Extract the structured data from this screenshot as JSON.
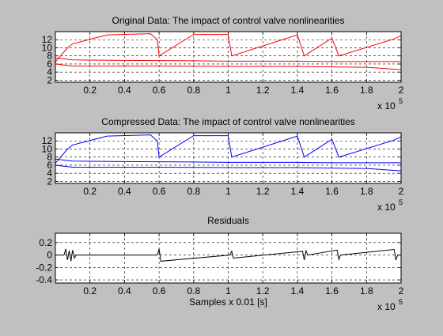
{
  "chart_data": [
    {
      "type": "line",
      "title": "Original Data: The impact of control valve nonlinearities",
      "xlabel": "",
      "ylabel": "",
      "xlim": [
        0,
        200000
      ],
      "ylim": [
        1.5,
        14
      ],
      "x_ticks": [
        0.2,
        0.4,
        0.6,
        0.8,
        1,
        1.2,
        1.4,
        1.6,
        1.8,
        2
      ],
      "x_tick_labels": [
        "0.2",
        "0.4",
        "0.6",
        "0.8",
        "1",
        "1.2",
        "1.4",
        "1.6",
        "1.8",
        "2"
      ],
      "y_ticks": [
        2,
        4,
        6,
        8,
        10,
        12
      ],
      "y_tick_labels": [
        "2",
        "4",
        "6",
        "8",
        "10",
        "12"
      ],
      "x_exponent_base": "x 10",
      "x_exponent": "5",
      "grid": true,
      "series": [
        {
          "color": "#ff0000",
          "x": [
            0,
            7000,
            10000,
            30000,
            55000,
            59000,
            60000,
            80000,
            100000,
            102000,
            140000,
            144000,
            160000,
            164000,
            196000,
            200000
          ],
          "y": [
            6.5,
            10,
            11,
            13.2,
            13.5,
            12,
            8,
            13.3,
            13.3,
            8,
            13.2,
            8,
            12.4,
            8,
            12.2,
            13
          ]
        },
        {
          "color": "#ff0000",
          "x": [
            0,
            10000,
            40000,
            80000,
            100000,
            140000,
            160000,
            200000
          ],
          "y": [
            7.5,
            7,
            6.9,
            6.8,
            6.7,
            6.7,
            6.6,
            6.6
          ]
        },
        {
          "color": "#ff0000",
          "x": [
            0,
            10000,
            60000,
            100000,
            140000,
            180000,
            200000
          ],
          "y": [
            6,
            5.5,
            5.5,
            5.4,
            5.4,
            5.2,
            4.6
          ]
        }
      ]
    },
    {
      "type": "line",
      "title": "Compressed Data: The impact of control valve nonlinearities",
      "xlabel": "",
      "ylabel": "",
      "xlim": [
        0,
        200000
      ],
      "ylim": [
        1.5,
        14
      ],
      "x_ticks": [
        0.2,
        0.4,
        0.6,
        0.8,
        1,
        1.2,
        1.4,
        1.6,
        1.8,
        2
      ],
      "x_tick_labels": [
        "0.2",
        "0.4",
        "0.6",
        "0.8",
        "1",
        "1.2",
        "1.4",
        "1.6",
        "1.8",
        "2"
      ],
      "y_ticks": [
        2,
        4,
        6,
        8,
        10,
        12
      ],
      "y_tick_labels": [
        "2",
        "4",
        "6",
        "8",
        "10",
        "12"
      ],
      "x_exponent_base": "x 10",
      "x_exponent": "5",
      "grid": true,
      "series": [
        {
          "color": "#0000ff",
          "x": [
            0,
            7000,
            10000,
            30000,
            55000,
            59000,
            60000,
            80000,
            100000,
            102000,
            140000,
            144000,
            160000,
            164000,
            196000,
            200000
          ],
          "y": [
            6.5,
            10,
            11,
            13.2,
            13.5,
            12,
            8,
            13.3,
            13.3,
            8,
            13.2,
            8,
            12.4,
            8,
            12.2,
            13
          ]
        },
        {
          "color": "#0000ff",
          "x": [
            0,
            10000,
            40000,
            80000,
            100000,
            140000,
            160000,
            200000
          ],
          "y": [
            7.5,
            7,
            6.9,
            6.8,
            6.7,
            6.7,
            6.6,
            6.6
          ]
        },
        {
          "color": "#0000ff",
          "x": [
            0,
            10000,
            60000,
            100000,
            140000,
            180000,
            200000
          ],
          "y": [
            6,
            5.5,
            5.5,
            5.4,
            5.4,
            5.2,
            4.6
          ]
        }
      ]
    },
    {
      "type": "line",
      "title": "Residuals",
      "xlabel": "Samples x 0.01 [s]",
      "ylabel": "",
      "xlim": [
        0,
        200000
      ],
      "ylim": [
        -0.45,
        0.35
      ],
      "x_ticks": [
        0.2,
        0.4,
        0.6,
        0.8,
        1,
        1.2,
        1.4,
        1.6,
        1.8,
        2
      ],
      "x_tick_labels": [
        "0.2",
        "0.4",
        "0.6",
        "0.8",
        "1",
        "1.2",
        "1.4",
        "1.6",
        "1.8",
        "2"
      ],
      "y_ticks": [
        0.2,
        0,
        -0.2,
        -0.4
      ],
      "y_tick_labels": [
        "0.2",
        "0",
        "-0.2",
        "-0.4"
      ],
      "x_exponent_base": "x 10",
      "x_exponent": "5",
      "grid": true,
      "series": [
        {
          "color": "#000000",
          "x": [
            0,
            5000,
            6000,
            7000,
            8000,
            9000,
            10000,
            11000,
            12000,
            59000,
            60000,
            61000,
            101000,
            102000,
            103000,
            143000,
            144000,
            145000,
            146000,
            163000,
            164000,
            165000,
            196000,
            197000,
            198000,
            200000
          ],
          "y": [
            0,
            0,
            0.1,
            -0.08,
            0.07,
            -0.1,
            0.08,
            -0.05,
            0,
            0,
            0.1,
            -0.1,
            0,
            0.06,
            -0.05,
            0.06,
            -0.08,
            0.07,
            0,
            0.08,
            -0.07,
            0,
            0.09,
            -0.08,
            0,
            0
          ]
        }
      ]
    }
  ]
}
